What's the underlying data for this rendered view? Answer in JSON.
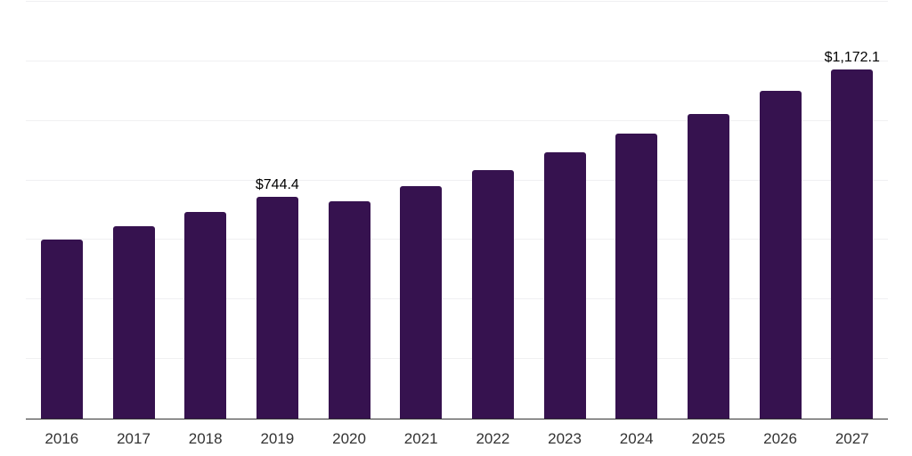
{
  "chart_data": {
    "type": "bar",
    "title": "",
    "xlabel": "",
    "ylabel": "",
    "categories": [
      "2016",
      "2017",
      "2018",
      "2019",
      "2020",
      "2021",
      "2022",
      "2023",
      "2024",
      "2025",
      "2026",
      "2027"
    ],
    "values": [
      600,
      646,
      694,
      744.4,
      729,
      780,
      835,
      895,
      958,
      1023,
      1100,
      1172.1
    ],
    "data_labels": [
      "",
      "",
      "",
      "$744.4",
      "",
      "",
      "",
      "",
      "",
      "",
      "",
      "$1,172.1"
    ],
    "ylim": [
      0,
      1400
    ],
    "gridline_step": 200,
    "grid": "horizontal",
    "y_tick_labels_visible": false,
    "legend": "none",
    "colors": {
      "bar": "#36124F",
      "axis": "#333333",
      "gridline": "#F0F0F2",
      "tick_label": "#333333",
      "data_label": "#000000",
      "background": "#FFFFFF"
    }
  }
}
